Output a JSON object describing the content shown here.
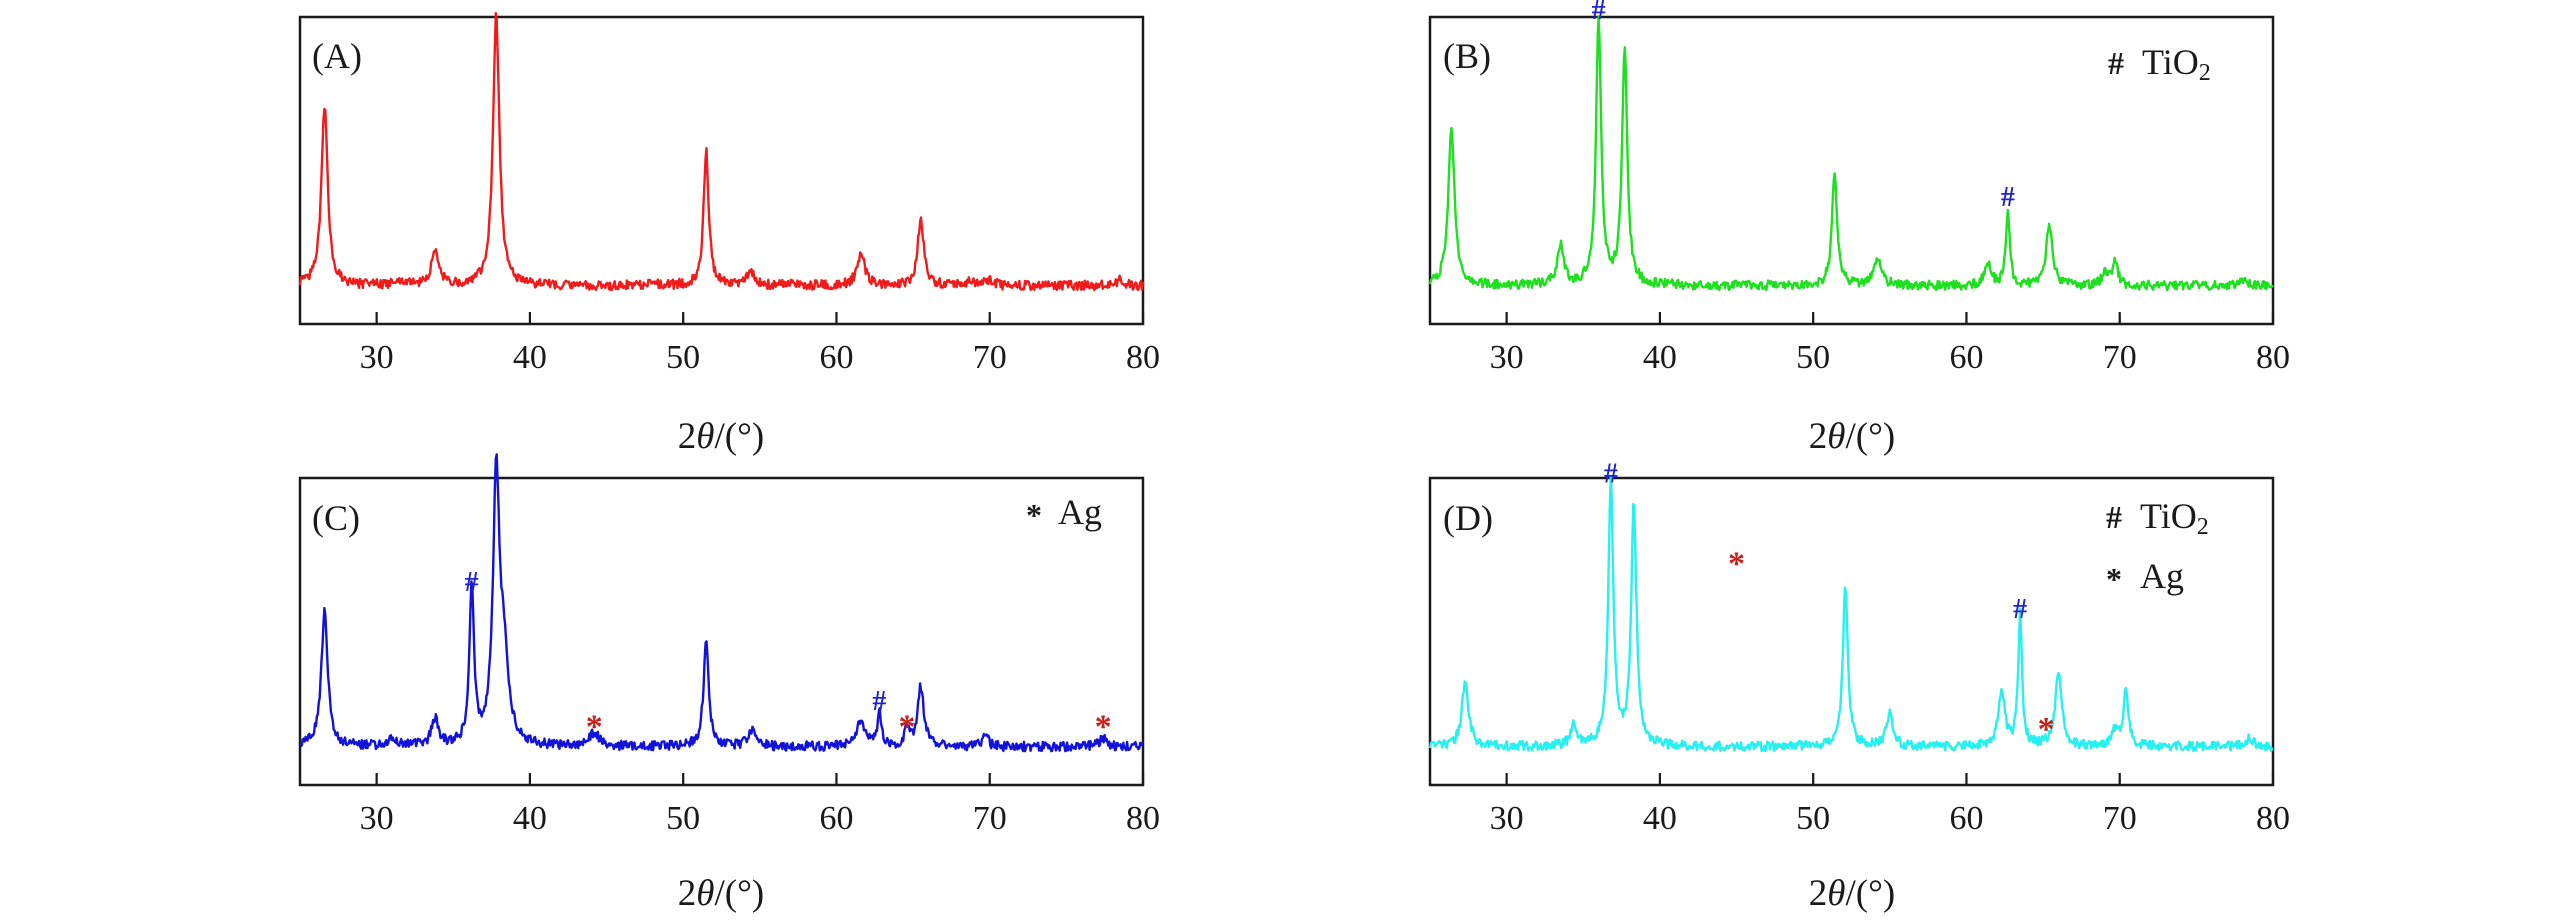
{
  "chart_data": [
    {
      "type": "line",
      "panel_label": "(A)",
      "color": "#f01b1b",
      "xlabel_prefix": "2",
      "xlabel_theta": "θ",
      "xlabel_suffix": "/(°)",
      "xlim": [
        25,
        80
      ],
      "xticks": [
        30,
        40,
        50,
        60,
        70,
        80
      ],
      "ylabel": "",
      "yticks": [],
      "legend": [],
      "baseline": 0.06,
      "peaks": [
        [
          26.6,
          0.66,
          0.25
        ],
        [
          31.5,
          0.02,
          0.4
        ],
        [
          33.8,
          0.12,
          0.3
        ],
        [
          37.8,
          1.0,
          0.25
        ],
        [
          48.0,
          0.01,
          0.4
        ],
        [
          51.5,
          0.5,
          0.2
        ],
        [
          54.4,
          0.05,
          0.3
        ],
        [
          57.0,
          0.01,
          0.3
        ],
        [
          61.6,
          0.12,
          0.3
        ],
        [
          65.5,
          0.24,
          0.25
        ],
        [
          68.8,
          0.02,
          0.3
        ],
        [
          70.0,
          0.02,
          0.3
        ],
        [
          78.5,
          0.02,
          0.3
        ]
      ],
      "markers": []
    },
    {
      "type": "line",
      "panel_label": "(B)",
      "color": "#1fe01f",
      "xlabel_prefix": "2",
      "xlabel_theta": "θ",
      "xlabel_suffix": "/(°)",
      "xlim": [
        25,
        80
      ],
      "xticks": [
        30,
        40,
        50,
        60,
        70,
        80
      ],
      "ylabel": "",
      "yticks": [],
      "legend": [
        {
          "symbol": "#",
          "symbol_color": "#1f26c8",
          "label": "TiO",
          "subscript": "2"
        }
      ],
      "baseline": 0.06,
      "peaks": [
        [
          26.4,
          0.58,
          0.25
        ],
        [
          33.5,
          0.15,
          0.25
        ],
        [
          36.0,
          0.98,
          0.2
        ],
        [
          37.7,
          0.88,
          0.2
        ],
        [
          51.4,
          0.42,
          0.2
        ],
        [
          54.2,
          0.1,
          0.3
        ],
        [
          61.4,
          0.08,
          0.25
        ],
        [
          62.7,
          0.28,
          0.15
        ],
        [
          65.4,
          0.22,
          0.25
        ],
        [
          69.0,
          0.05,
          0.2
        ],
        [
          69.7,
          0.1,
          0.2
        ],
        [
          78.2,
          0.02,
          0.3
        ]
      ],
      "markers": [
        {
          "symbol": "#",
          "x": 36.0,
          "level": 1.03,
          "color": "#1f26c8"
        },
        {
          "symbol": "#",
          "x": 62.7,
          "level": 0.34,
          "color": "#1f26c8"
        }
      ]
    },
    {
      "type": "line",
      "panel_label": "(C)",
      "color": "#1212d8",
      "xlabel_prefix": "2",
      "xlabel_theta": "θ",
      "xlabel_suffix": "/(°)",
      "xlim": [
        25,
        80
      ],
      "xticks": [
        30,
        40,
        50,
        60,
        70,
        80
      ],
      "ylabel": "",
      "yticks": [],
      "legend": [
        {
          "symbol": "*",
          "symbol_color": "#c8201a",
          "label": "Ag",
          "subscript": ""
        }
      ],
      "baseline": 0.06,
      "peaks": [
        [
          26.6,
          0.5,
          0.25
        ],
        [
          31.0,
          0.03,
          0.4
        ],
        [
          33.8,
          0.1,
          0.25
        ],
        [
          36.2,
          0.58,
          0.18
        ],
        [
          37.8,
          0.98,
          0.25
        ],
        [
          38.3,
          0.3,
          0.35
        ],
        [
          44.2,
          0.05,
          0.35
        ],
        [
          51.5,
          0.4,
          0.2
        ],
        [
          54.5,
          0.06,
          0.3
        ],
        [
          61.6,
          0.1,
          0.3
        ],
        [
          62.8,
          0.13,
          0.15
        ],
        [
          64.6,
          0.06,
          0.2
        ],
        [
          65.5,
          0.22,
          0.25
        ],
        [
          69.7,
          0.05,
          0.2
        ],
        [
          77.4,
          0.03,
          0.3
        ]
      ],
      "markers": [
        {
          "symbol": "#",
          "x": 36.2,
          "level": 0.62,
          "color": "#1f26c8"
        },
        {
          "symbol": "#",
          "x": 62.8,
          "level": 0.18,
          "color": "#1f26c8"
        },
        {
          "symbol": "*",
          "x": 44.2,
          "level": 0.08,
          "color": "#c8201a"
        },
        {
          "symbol": "*",
          "x": 64.6,
          "level": 0.08,
          "color": "#c8201a"
        },
        {
          "symbol": "*",
          "x": 77.4,
          "level": 0.08,
          "color": "#c8201a"
        }
      ]
    },
    {
      "type": "line",
      "panel_label": "(D)",
      "color": "#27f0f0",
      "xlabel_prefix": "2",
      "xlabel_theta": "θ",
      "xlabel_suffix": "/(°)",
      "xlim": [
        25,
        80
      ],
      "xticks": [
        30,
        40,
        50,
        60,
        70,
        80
      ],
      "ylabel": "",
      "yticks": [],
      "legend": [
        {
          "symbol": "#",
          "symbol_color": "#1f26c8",
          "label": "TiO",
          "subscript": "2"
        },
        {
          "symbol": "*",
          "symbol_color": "#c8201a",
          "label": "Ag",
          "subscript": ""
        }
      ],
      "baseline": 0.06,
      "peaks": [
        [
          27.3,
          0.25,
          0.25
        ],
        [
          34.4,
          0.08,
          0.25
        ],
        [
          36.8,
          0.97,
          0.2
        ],
        [
          38.3,
          0.9,
          0.2
        ],
        [
          52.1,
          0.58,
          0.2
        ],
        [
          55.0,
          0.12,
          0.25
        ],
        [
          62.3,
          0.2,
          0.25
        ],
        [
          63.5,
          0.48,
          0.15
        ],
        [
          66.0,
          0.28,
          0.25
        ],
        [
          69.7,
          0.06,
          0.2
        ],
        [
          70.4,
          0.2,
          0.2
        ],
        [
          78.5,
          0.03,
          0.3
        ]
      ],
      "markers": [
        {
          "symbol": "#",
          "x": 36.8,
          "level": 1.02,
          "color": "#1f26c8"
        },
        {
          "symbol": "#",
          "x": 63.5,
          "level": 0.52,
          "color": "#1f26c8"
        },
        {
          "symbol": "*",
          "x": 45.0,
          "level": 0.68,
          "color": "#c8201a"
        },
        {
          "symbol": "*",
          "x": 65.2,
          "level": 0.07,
          "color": "#c8201a"
        }
      ]
    }
  ]
}
